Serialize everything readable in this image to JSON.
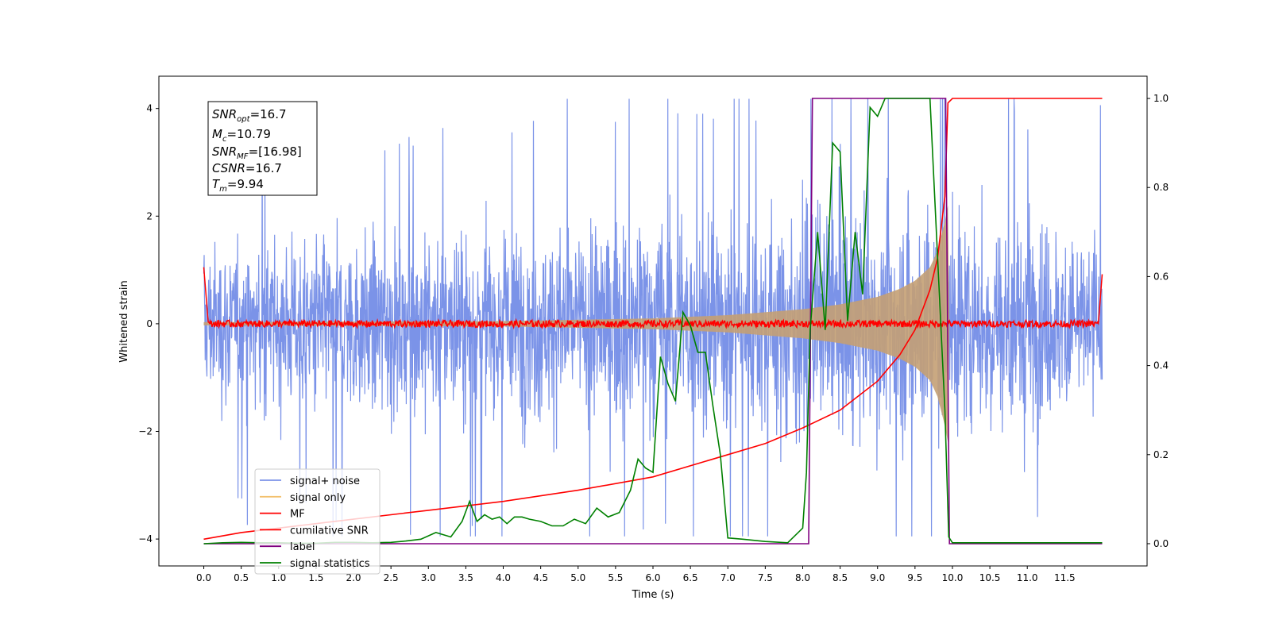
{
  "chart_data": {
    "type": "line",
    "xlabel": "Time (s)",
    "ylabel_left": "Whitened strain",
    "xlim": [
      -0.6,
      12.6
    ],
    "ylim_left": [
      -4.5,
      4.6
    ],
    "ylim_right": [
      -0.05,
      1.05
    ],
    "x_ticks": [
      0.0,
      0.5,
      1.0,
      1.5,
      2.0,
      2.5,
      3.0,
      3.5,
      4.0,
      4.5,
      5.0,
      5.5,
      6.0,
      6.5,
      7.0,
      7.5,
      8.0,
      8.5,
      9.0,
      9.5,
      10.0,
      10.5,
      11.0,
      11.5
    ],
    "x_tick_labels": [
      "0.0",
      "0.5",
      "1.0",
      "1.5",
      "2.0",
      "2.5",
      "3.0",
      "3.5",
      "4.0",
      "4.5",
      "5.0",
      "5.5",
      "6.0",
      "6.5",
      "7.0",
      "7.5",
      "8.0",
      "8.5",
      "9.0",
      "9.5",
      "10.0",
      "10.5",
      "11.0",
      "11.5"
    ],
    "y_ticks_left": [
      -4,
      -2,
      0,
      2,
      4
    ],
    "y_tick_labels_left": [
      "−4",
      "−2",
      "0",
      "2",
      "4"
    ],
    "y_ticks_right": [
      0.0,
      0.2,
      0.4,
      0.6,
      0.8,
      1.0
    ],
    "y_tick_labels_right": [
      "0.0",
      "0.2",
      "0.4",
      "0.6",
      "0.8",
      "1.0"
    ],
    "annotations": {
      "snr_opt": "=16.7",
      "mc": "=10.79",
      "snr_mf": "=[16.98]",
      "csnr": "=16.7",
      "tm": "=9.94"
    },
    "series": [
      {
        "name": "signal+ noise",
        "color": "#7b93e8",
        "axis": "left",
        "description_points": {
          "x_range": [
            0.0,
            12.0
          ],
          "envelope": [
            [
              0.0,
              2.2,
              -2.2
            ],
            [
              5.0,
              2.8,
              -2.8
            ],
            [
              9.5,
              3.4,
              -3.4
            ],
            [
              12.0,
              2.6,
              -2.6
            ]
          ],
          "peak_max": 4.18,
          "peak_min": -3.95
        }
      },
      {
        "name": "signal only",
        "color": "#f3c16f",
        "axis": "left",
        "envelope": [
          [
            0.0,
            0.03
          ],
          [
            4.0,
            0.05
          ],
          [
            6.0,
            0.1
          ],
          [
            7.0,
            0.16
          ],
          [
            8.0,
            0.27
          ],
          [
            8.5,
            0.36
          ],
          [
            9.0,
            0.5
          ],
          [
            9.3,
            0.65
          ],
          [
            9.5,
            0.8
          ],
          [
            9.7,
            1.05
          ],
          [
            9.8,
            1.35
          ],
          [
            9.9,
            1.9
          ],
          [
            9.94,
            2.2
          ],
          [
            9.95,
            0.0
          ],
          [
            12.0,
            0.0
          ]
        ]
      },
      {
        "name": "MF",
        "color": "#ff0000",
        "axis": "left",
        "x": [
          0.0,
          0.05,
          12.0
        ],
        "y_start": 1.05,
        "y_baseline": 0.0,
        "y_end": 0.92,
        "noise_amplitude": 0.1
      },
      {
        "name": "cumilative SNR",
        "color": "#ff0000",
        "axis": "right",
        "x": [
          0.0,
          0.5,
          1.0,
          2.0,
          3.0,
          4.0,
          5.0,
          6.0,
          7.0,
          7.5,
          8.0,
          8.5,
          9.0,
          9.3,
          9.5,
          9.7,
          9.8,
          9.9,
          9.94,
          10.0,
          12.0
        ],
        "y": [
          0.01,
          0.025,
          0.035,
          0.055,
          0.075,
          0.095,
          0.12,
          0.15,
          0.2,
          0.225,
          0.26,
          0.3,
          0.365,
          0.425,
          0.48,
          0.57,
          0.64,
          0.78,
          0.99,
          1.0,
          1.0
        ]
      },
      {
        "name": "label",
        "color": "#800080",
        "axis": "right",
        "x": [
          0.0,
          8.08,
          8.13,
          9.91,
          9.96,
          12.0
        ],
        "y": [
          0.0,
          0.0,
          1.0,
          1.0,
          0.0,
          0.0
        ]
      },
      {
        "name": "signal statistics",
        "color": "#008000",
        "axis": "right",
        "x": [
          0.0,
          0.25,
          0.5,
          0.75,
          1.0,
          1.25,
          1.5,
          1.75,
          2.0,
          2.25,
          2.5,
          2.7,
          2.9,
          3.1,
          3.3,
          3.45,
          3.55,
          3.65,
          3.75,
          3.85,
          3.95,
          4.05,
          4.15,
          4.25,
          4.35,
          4.5,
          4.65,
          4.8,
          4.95,
          5.1,
          5.25,
          5.4,
          5.55,
          5.7,
          5.8,
          5.9,
          6.0,
          6.1,
          6.2,
          6.3,
          6.4,
          6.5,
          6.6,
          6.7,
          6.8,
          6.9,
          7.0,
          7.2,
          7.5,
          7.8,
          8.0,
          8.05,
          8.1,
          8.2,
          8.3,
          8.4,
          8.5,
          8.6,
          8.7,
          8.8,
          8.9,
          9.0,
          9.1,
          9.2,
          9.3,
          9.5,
          9.7,
          9.9,
          9.95,
          10.0,
          11.0,
          12.0
        ],
        "y": [
          0.0,
          0.002,
          0.003,
          0.002,
          0.002,
          0.001,
          0.001,
          0.003,
          0.003,
          0.002,
          0.003,
          0.006,
          0.01,
          0.025,
          0.015,
          0.05,
          0.095,
          0.05,
          0.065,
          0.055,
          0.06,
          0.045,
          0.06,
          0.06,
          0.055,
          0.05,
          0.04,
          0.04,
          0.055,
          0.045,
          0.08,
          0.06,
          0.07,
          0.12,
          0.19,
          0.17,
          0.16,
          0.42,
          0.36,
          0.32,
          0.52,
          0.49,
          0.43,
          0.43,
          0.31,
          0.2,
          0.013,
          0.01,
          0.005,
          0.002,
          0.035,
          0.16,
          0.48,
          0.7,
          0.48,
          0.9,
          0.88,
          0.5,
          0.7,
          0.56,
          0.98,
          0.96,
          1.0,
          1.0,
          1.0,
          1.0,
          1.0,
          0.3,
          0.015,
          0.002,
          0.002,
          0.002
        ]
      }
    ],
    "legend": {
      "placement": "lower-left",
      "entries": [
        "signal+ noise",
        "signal only",
        "MF",
        "cumilative SNR",
        "label",
        "signal statistics"
      ]
    }
  }
}
